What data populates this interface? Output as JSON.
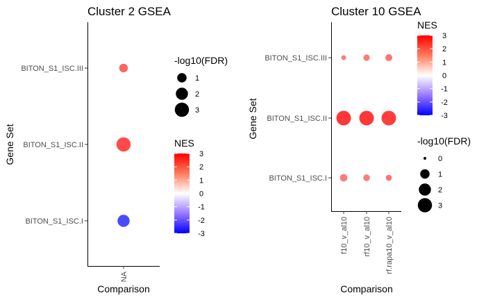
{
  "chart_data": [
    {
      "type": "scatter",
      "title": "Cluster 2 GSEA",
      "xlabel": "Comparison",
      "ylabel": "Gene Set",
      "x_categories": [
        "NA"
      ],
      "y_categories": [
        "BITON_S1_ISC.I",
        "BITON_S1_ISC.II",
        "BITON_S1_ISC.III"
      ],
      "points": [
        {
          "x": "NA",
          "y": "BITON_S1_ISC.III",
          "neg_log10_fdr": 0.8,
          "nes": 1.3
        },
        {
          "x": "NA",
          "y": "BITON_S1_ISC.II",
          "neg_log10_fdr": 3.0,
          "nes": 1.7
        },
        {
          "x": "NA",
          "y": "BITON_S1_ISC.I",
          "neg_log10_fdr": 2.0,
          "nes": -1.7
        }
      ],
      "size_legend": {
        "title": "-log10(FDR)",
        "values": [
          1,
          2,
          3
        ]
      },
      "color_legend": {
        "title": "NES",
        "ticks": [
          3,
          2,
          1,
          0,
          -1,
          -2,
          -3
        ],
        "range": [
          -3,
          3
        ],
        "low": "#0000ff",
        "mid": "#ffffff",
        "high": "#ff0000"
      },
      "grid": false
    },
    {
      "type": "scatter",
      "title": "Cluster 10 GSEA",
      "xlabel": "Comparison",
      "ylabel": "Gene Set",
      "x_categories": [
        "f10_v_al10",
        "rf10_v_al10",
        "rf.rapa10_v_al10"
      ],
      "y_categories": [
        "BITON_S1_ISC.I",
        "BITON_S1_ISC.II",
        "BITON_S1_ISC.III"
      ],
      "points": [
        {
          "x": "f10_v_al10",
          "y": "BITON_S1_ISC.III",
          "neg_log10_fdr": 0.1,
          "nes": 1.0
        },
        {
          "x": "rf10_v_al10",
          "y": "BITON_S1_ISC.III",
          "neg_log10_fdr": 0.3,
          "nes": 1.0
        },
        {
          "x": "rf.rapa10_v_al10",
          "y": "BITON_S1_ISC.III",
          "neg_log10_fdr": 0.4,
          "nes": 1.1
        },
        {
          "x": "f10_v_al10",
          "y": "BITON_S1_ISC.II",
          "neg_log10_fdr": 3.2,
          "nes": 2.0
        },
        {
          "x": "rf10_v_al10",
          "y": "BITON_S1_ISC.II",
          "neg_log10_fdr": 3.2,
          "nes": 2.0
        },
        {
          "x": "rf.rapa10_v_al10",
          "y": "BITON_S1_ISC.II",
          "neg_log10_fdr": 3.2,
          "nes": 1.9
        },
        {
          "x": "f10_v_al10",
          "y": "BITON_S1_ISC.I",
          "neg_log10_fdr": 0.5,
          "nes": 1.0
        },
        {
          "x": "rf10_v_al10",
          "y": "BITON_S1_ISC.I",
          "neg_log10_fdr": 0.35,
          "nes": 1.0
        },
        {
          "x": "rf.rapa10_v_al10",
          "y": "BITON_S1_ISC.I",
          "neg_log10_fdr": 0.25,
          "nes": 1.1
        }
      ],
      "size_legend": {
        "title": "-log10(FDR)",
        "values": [
          0,
          1,
          2,
          3
        ]
      },
      "color_legend": {
        "title": "NES",
        "ticks": [
          3,
          2,
          1,
          0,
          -1,
          -2,
          -3
        ],
        "range": [
          -3,
          3
        ],
        "low": "#0000ff",
        "mid": "#ffffff",
        "high": "#ff0000"
      },
      "grid": false
    }
  ]
}
